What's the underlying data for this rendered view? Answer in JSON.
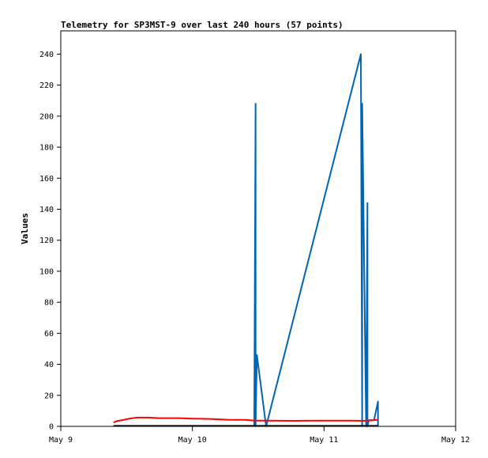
{
  "chart_data": {
    "type": "line",
    "title": "Telemetry for SP3MST-9 over last 240 hours (57 points)",
    "xlabel": "",
    "ylabel": "Values",
    "x_unit": "days",
    "x_ticks": [
      {
        "value": 9,
        "label": "May 9"
      },
      {
        "value": 10,
        "label": "May 10"
      },
      {
        "value": 11,
        "label": "May 11"
      },
      {
        "value": 12,
        "label": "May 12"
      }
    ],
    "xlim": [
      9,
      12
    ],
    "ylim": [
      0,
      255
    ],
    "y_ticks": [
      0,
      20,
      40,
      60,
      80,
      100,
      120,
      140,
      160,
      180,
      200,
      220,
      240
    ],
    "grid": false,
    "legend": "none",
    "series": [
      {
        "color": "#0066b3",
        "x": [
          10.47,
          10.48,
          10.48,
          10.49,
          10.56,
          11.28,
          11.29,
          11.29,
          11.32,
          11.33,
          11.33,
          11.34,
          11.38,
          11.41,
          11.41
        ],
        "y": [
          0,
          208,
          0,
          46,
          0,
          240,
          0,
          208,
          0,
          144,
          0,
          4,
          4,
          16,
          0
        ]
      },
      {
        "color": "#ff0000",
        "x": [
          9.4,
          9.43,
          9.47,
          9.52,
          9.58,
          9.66,
          9.75,
          9.9,
          10.0,
          10.13,
          10.27,
          10.4,
          10.47,
          10.56,
          10.8,
          11.0,
          11.2,
          11.3,
          11.38,
          11.41
        ],
        "y": [
          2.5,
          3.5,
          4.0,
          5.0,
          5.7,
          5.7,
          5.3,
          5.3,
          5.0,
          4.8,
          4.3,
          4.2,
          3.7,
          3.7,
          3.6,
          3.7,
          3.7,
          3.6,
          4.0,
          4.3
        ]
      },
      {
        "color": "#000000",
        "x": [
          9.4,
          11.41
        ],
        "y": [
          0.3,
          0.3
        ]
      }
    ]
  }
}
